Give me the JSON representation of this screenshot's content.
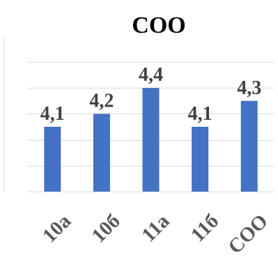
{
  "chart_data": {
    "type": "bar",
    "title": "СОО",
    "categories": [
      "10а",
      "10б",
      "11а",
      "11б",
      "СОО"
    ],
    "values": [
      4.1,
      4.2,
      4.4,
      4.1,
      4.3
    ],
    "data_labels": [
      "4,1",
      "4,2",
      "4,4",
      "4,1",
      "4,3"
    ],
    "xlabel": "",
    "ylabel": "",
    "ylim": [
      3.6,
      4.6
    ],
    "grid": true,
    "legend": "none",
    "bar_color": "#4472C4"
  }
}
